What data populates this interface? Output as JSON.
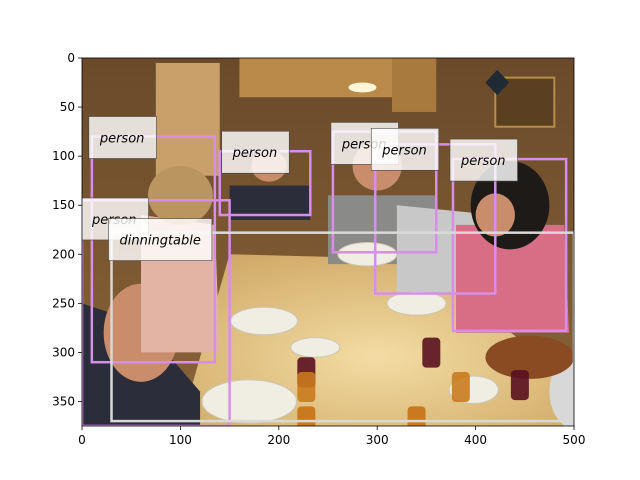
{
  "chart_data": {
    "type": "image-with-detection-boxes",
    "xlim": [
      0,
      500
    ],
    "ylim": [
      375,
      0
    ],
    "xticks": [
      0,
      100,
      200,
      300,
      400,
      500
    ],
    "yticks": [
      0,
      50,
      100,
      150,
      200,
      250,
      300,
      350
    ],
    "grid": false,
    "photo_palette": {
      "wall": "#7d5a34",
      "cabinet": "#b98a4a",
      "table": "#e7c98a",
      "ceiling_light": "#fff6d8",
      "shadow": "#2d2219",
      "pink_shirt": "#d86e86",
      "dark_shirt": "#2b2d3a",
      "gray_shirt": "#8a8b88",
      "skin": "#c98d6b",
      "plate": "#f0ede2",
      "wine": "#5a1020",
      "amber_glass": "#c97a1e"
    },
    "boxes": [
      {
        "label": "person",
        "x0": 10,
        "y0": 80,
        "x1": 135,
        "y1": 310,
        "color": "#d78ee8"
      },
      {
        "label": "person",
        "x0": 140,
        "y0": 95,
        "x1": 232,
        "y1": 160,
        "color": "#d78ee8"
      },
      {
        "label": "person",
        "x0": 255,
        "y0": 75,
        "x1": 360,
        "y1": 198,
        "color": "#d78ee8"
      },
      {
        "label": "person",
        "x0": 298,
        "y0": 88,
        "x1": 420,
        "y1": 240,
        "color": "#d78ee8"
      },
      {
        "label": "person",
        "x0": 377,
        "y0": 103,
        "x1": 492,
        "y1": 278,
        "color": "#d78ee8"
      },
      {
        "label": "person",
        "x0": 0,
        "y0": 145,
        "x1": 150,
        "y1": 375,
        "color": "#d78ee8"
      },
      {
        "label": "diningtable",
        "x0": 30,
        "y0": 178,
        "x1": 500,
        "y1": 370,
        "color": "#d9d9d9"
      }
    ],
    "labels": [
      {
        "text": "person",
        "x": 10,
        "y": 80
      },
      {
        "text": "person",
        "x": 145,
        "y": 95
      },
      {
        "text": "person",
        "x": 256,
        "y": 86
      },
      {
        "text": "person",
        "x": 297,
        "y": 92
      },
      {
        "text": "person",
        "x": 377,
        "y": 103
      },
      {
        "text": "person",
        "x": 2,
        "y": 163
      },
      {
        "text": "dinningtable",
        "x": 30,
        "y": 184
      }
    ]
  }
}
